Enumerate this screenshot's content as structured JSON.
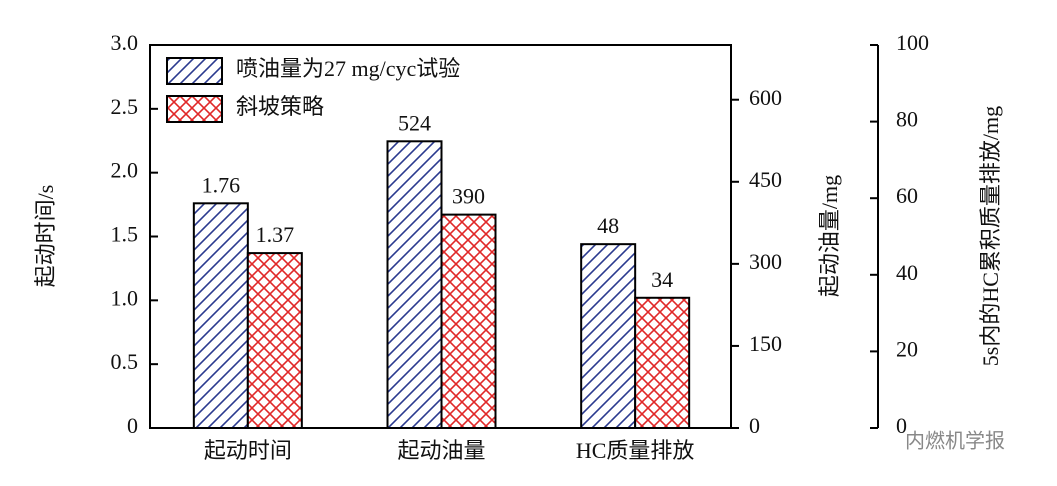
{
  "chart_data": {
    "type": "bar",
    "categories": [
      "起动时间",
      "起动油量",
      "HC质量排放"
    ],
    "category_axes": [
      "y",
      "y2",
      "y3"
    ],
    "series": [
      {
        "name": "喷油量为27 mg/cyc试验",
        "color": "#2b3a8f",
        "values": [
          1.76,
          524,
          48
        ]
      },
      {
        "name": "斜坡策略",
        "color": "#e02828",
        "values": [
          1.37,
          390,
          34
        ]
      }
    ],
    "ylabel": "起动时间/s",
    "ylim": [
      0,
      3
    ],
    "yticks": [
      0,
      0.5,
      {
        "value": 1,
        "label": "1.0"
      },
      1.5,
      {
        "value": 2,
        "label": "2.0"
      },
      2.5,
      {
        "value": 3,
        "label": "3.0"
      }
    ],
    "y2label": "起动油量/mg",
    "y2lim": [
      0,
      700
    ],
    "y2ticks": [
      0,
      150,
      300,
      450,
      600
    ],
    "y3label": "5s内的HC累积质量排放/mg",
    "y3lim": [
      0,
      100
    ],
    "y3ticks": [
      0,
      20,
      40,
      60,
      80,
      100
    ],
    "legend": "upper left",
    "watermark": "内燃机学报"
  }
}
